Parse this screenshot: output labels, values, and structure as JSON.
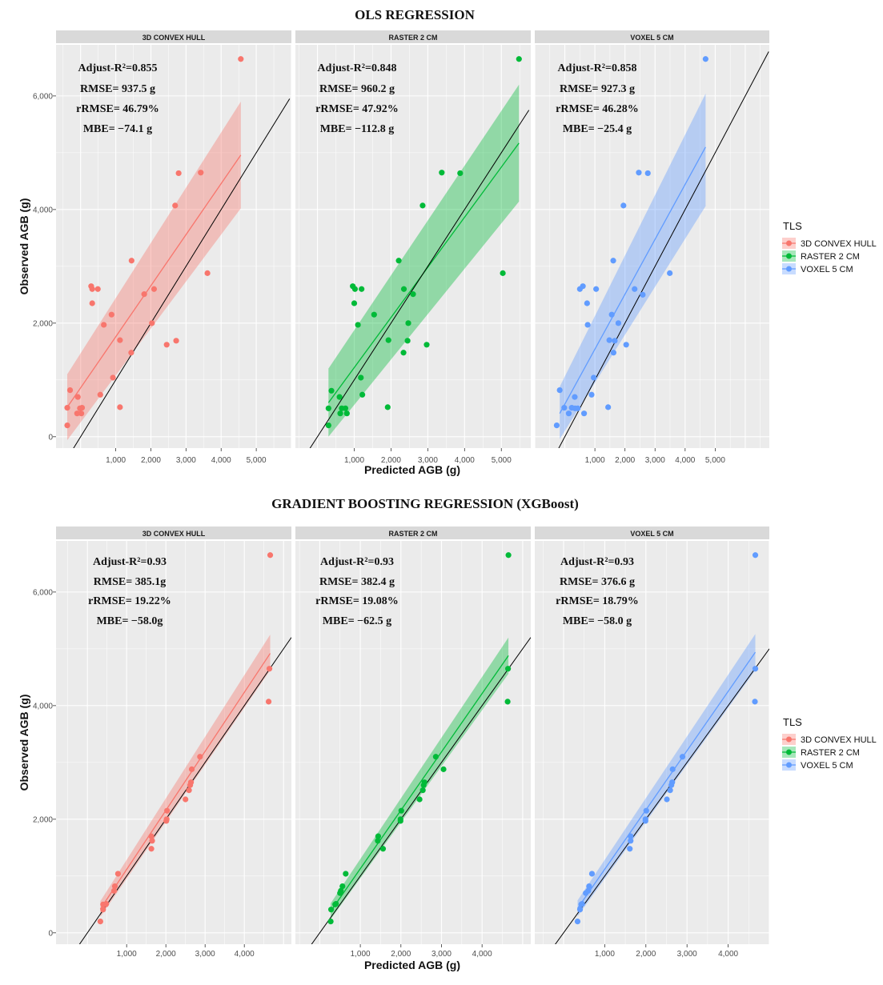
{
  "figure": {
    "legend_title": "TLS",
    "legend_labels": [
      "3D CONVEX HULL",
      "RASTER 2 CM",
      "VOXEL 5 CM"
    ],
    "colors": {
      "convex": "#F8766D",
      "raster": "#00BA38",
      "voxel": "#619CFF",
      "panel_bg": "#EBEBEB",
      "strip_bg": "#D9D9D9"
    }
  },
  "chart_data": [
    {
      "type": "scatter",
      "title": "OLS REGRESSION",
      "xlabel": "Predicted AGB (g)",
      "ylabel": "Observed AGB (g)",
      "ylim": [
        -200,
        6900
      ],
      "yticks": [
        0,
        2000,
        4000,
        6000
      ],
      "ytick_labels": [
        "0",
        "2,000",
        "4,000",
        "6,000"
      ],
      "panels": [
        {
          "strip": "3D CONVEX HULL",
          "color_key": "convex",
          "xlim": [
            -700,
            6000
          ],
          "xticks": [
            1000,
            2000,
            3000,
            4000,
            5000
          ],
          "xtick_labels": [
            "1,000",
            "2,000",
            "3,000",
            "4,000",
            "5,000"
          ],
          "stats": [
            "Adjust-R²=0.855",
            "RMSE= 937.5 g",
            "rRMSE= 46.79%",
            "MBE= −74.1 g"
          ],
          "points": [
            [
              -380,
              200
            ],
            [
              -380,
              510
            ],
            [
              -300,
              820
            ],
            [
              -80,
              700
            ],
            [
              -100,
              410
            ],
            [
              -20,
              500
            ],
            [
              20,
              410
            ],
            [
              40,
              510
            ],
            [
              300,
              2650
            ],
            [
              330,
              2600
            ],
            [
              330,
              2350
            ],
            [
              490,
              2600
            ],
            [
              560,
              740
            ],
            [
              660,
              1970
            ],
            [
              880,
              2150
            ],
            [
              920,
              1040
            ],
            [
              1120,
              520
            ],
            [
              1120,
              1700
            ],
            [
              1440,
              1480
            ],
            [
              1450,
              3100
            ],
            [
              1810,
              2510
            ],
            [
              2030,
              2000
            ],
            [
              2090,
              2600
            ],
            [
              2450,
              1620
            ],
            [
              2690,
              4070
            ],
            [
              2720,
              1690
            ],
            [
              2790,
              4640
            ],
            [
              3420,
              4650
            ],
            [
              3610,
              2880
            ],
            [
              4560,
              6650
            ]
          ],
          "fit": {
            "x": [
              -380,
              4560
            ],
            "y": [
              520,
              4960
            ]
          },
          "band": {
            "upper": [
              1100,
              5900
            ],
            "lower": [
              -60,
              4020
            ]
          },
          "identity": {
            "x": [
              -650,
              5950
            ]
          }
        },
        {
          "strip": "RASTER 2 CM",
          "color_key": "raster",
          "xlim": [
            -600,
            5800
          ],
          "xticks": [
            1000,
            2000,
            3000,
            4000,
            5000
          ],
          "xtick_labels": [
            "1,000",
            "2,000",
            "3,000",
            "4,000",
            "5,000"
          ],
          "stats": [
            "Adjust-R²=0.848",
            "RMSE= 960.2 g",
            "rRMSE= 47.92%",
            "MBE= −112.8 g"
          ],
          "points": [
            [
              300,
              200
            ],
            [
              300,
              500
            ],
            [
              380,
              810
            ],
            [
              600,
              700
            ],
            [
              620,
              410
            ],
            [
              660,
              500
            ],
            [
              760,
              500
            ],
            [
              800,
              410
            ],
            [
              960,
              2650
            ],
            [
              1020,
              2600
            ],
            [
              1000,
              2350
            ],
            [
              1100,
              1970
            ],
            [
              1180,
              1040
            ],
            [
              1200,
              2600
            ],
            [
              1220,
              740
            ],
            [
              1540,
              2150
            ],
            [
              1910,
              520
            ],
            [
              1930,
              1700
            ],
            [
              2210,
              3100
            ],
            [
              2340,
              1480
            ],
            [
              2350,
              2600
            ],
            [
              2450,
              1690
            ],
            [
              2470,
              2000
            ],
            [
              2600,
              2510
            ],
            [
              2860,
              4070
            ],
            [
              2970,
              1620
            ],
            [
              3380,
              4650
            ],
            [
              3880,
              4640
            ],
            [
              5040,
              2880
            ],
            [
              5480,
              6650
            ]
          ],
          "fit": {
            "x": [
              300,
              5480
            ],
            "y": [
              600,
              5170
            ]
          },
          "band": {
            "upper": [
              1200,
              6200
            ],
            "lower": [
              0,
              4140
            ]
          },
          "identity": {
            "x": [
              -580,
              5750
            ]
          }
        },
        {
          "strip": "VOXEL 5 CM",
          "color_key": "voxel",
          "xlim": [
            -1000,
            6800
          ],
          "xticks": [
            1000,
            2000,
            3000,
            4000,
            5000
          ],
          "xtick_labels": [
            "1,000",
            "2,000",
            "3,000",
            "4,000",
            "5,000"
          ],
          "stats": [
            "Adjust-R²=0.858",
            "RMSE= 927.3 g",
            "rRMSE= 46.28%",
            "MBE= −25.4 g"
          ],
          "points": [
            [
              -270,
              200
            ],
            [
              -170,
              820
            ],
            [
              -20,
              510
            ],
            [
              130,
              410
            ],
            [
              230,
              510
            ],
            [
              330,
              700
            ],
            [
              340,
              500
            ],
            [
              430,
              500
            ],
            [
              500,
              2600
            ],
            [
              600,
              2650
            ],
            [
              640,
              410
            ],
            [
              740,
              2350
            ],
            [
              760,
              1970
            ],
            [
              890,
              740
            ],
            [
              960,
              1040
            ],
            [
              1040,
              2600
            ],
            [
              1440,
              520
            ],
            [
              1480,
              1700
            ],
            [
              1560,
              2150
            ],
            [
              1610,
              3100
            ],
            [
              1620,
              1480
            ],
            [
              1660,
              1690
            ],
            [
              1780,
              2000
            ],
            [
              1950,
              4070
            ],
            [
              2040,
              1620
            ],
            [
              2320,
              2600
            ],
            [
              2460,
              4650
            ],
            [
              2590,
              2500
            ],
            [
              2760,
              4640
            ],
            [
              3490,
              2880
            ],
            [
              4680,
              6650
            ]
          ],
          "fit": {
            "x": [
              -170,
              4680
            ],
            "y": [
              410,
              5100
            ]
          },
          "band": {
            "upper": [
              880,
              6040
            ],
            "lower": [
              -40,
              4060
            ]
          },
          "identity": {
            "x": [
              -980,
              6780
            ]
          }
        }
      ]
    },
    {
      "type": "scatter",
      "title": "GRADIENT BOOSTING REGRESSION (XGBoost)",
      "xlabel": "Predicted AGB (g)",
      "ylabel": "Observed AGB (g)",
      "ylim": [
        -200,
        6900
      ],
      "yticks": [
        0,
        2000,
        4000,
        6000
      ],
      "ytick_labels": [
        "0",
        "2,000",
        "4,000",
        "6,000"
      ],
      "panels": [
        {
          "strip": "3D CONVEX HULL",
          "color_key": "convex",
          "xlim": [
            -800,
            5200
          ],
          "xticks": [
            1000,
            2000,
            3000,
            4000
          ],
          "xtick_labels": [
            "1,000",
            "2,000",
            "3,000",
            "4,000"
          ],
          "stats": [
            "Adjust-R²=0.93",
            "RMSE= 385.1g",
            "rRMSE= 19.22%",
            "MBE= −58.0g"
          ],
          "points": [
            [
              330,
              200
            ],
            [
              400,
              410
            ],
            [
              400,
              500
            ],
            [
              470,
              500
            ],
            [
              480,
              510
            ],
            [
              680,
              740
            ],
            [
              700,
              820
            ],
            [
              780,
              1040
            ],
            [
              1630,
              1480
            ],
            [
              1630,
              1700
            ],
            [
              1650,
              1620
            ],
            [
              2010,
              1970
            ],
            [
              2020,
              2000
            ],
            [
              2030,
              2150
            ],
            [
              2500,
              2350
            ],
            [
              2590,
              2510
            ],
            [
              2620,
              2600
            ],
            [
              2640,
              2650
            ],
            [
              2660,
              2880
            ],
            [
              2870,
              3100
            ],
            [
              4620,
              4070
            ],
            [
              4640,
              4650
            ],
            [
              4660,
              6650
            ]
          ],
          "fit": {
            "x": [
              330,
              4660
            ],
            "y": [
              420,
              4920
            ]
          },
          "band": {
            "upper": [
              560,
              5250
            ],
            "lower": [
              280,
              4620
            ]
          },
          "identity": {
            "x": [
              -800,
              5200
            ]
          }
        },
        {
          "strip": "RASTER 2 CM",
          "color_key": "raster",
          "xlim": [
            -600,
            5200
          ],
          "xticks": [
            1000,
            2000,
            3000,
            4000
          ],
          "xtick_labels": [
            "1,000",
            "2,000",
            "3,000",
            "4,000"
          ],
          "stats": [
            "Adjust-R²=0.93",
            "RMSE= 382.4 g",
            "rRMSE= 19.08%",
            "MBE= −62.5 g"
          ],
          "points": [
            [
              270,
              200
            ],
            [
              280,
              410
            ],
            [
              380,
              500
            ],
            [
              400,
              510
            ],
            [
              500,
              700
            ],
            [
              520,
              740
            ],
            [
              560,
              820
            ],
            [
              640,
              1040
            ],
            [
              1430,
              1620
            ],
            [
              1440,
              1700
            ],
            [
              1560,
              1480
            ],
            [
              1990,
              1970
            ],
            [
              1990,
              2000
            ],
            [
              2010,
              2150
            ],
            [
              2460,
              2350
            ],
            [
              2540,
              2510
            ],
            [
              2560,
              2600
            ],
            [
              2580,
              2650
            ],
            [
              2860,
              3100
            ],
            [
              3050,
              2880
            ],
            [
              4630,
              4070
            ],
            [
              4640,
              4650
            ],
            [
              4650,
              6650
            ]
          ],
          "fit": {
            "x": [
              270,
              4650
            ],
            "y": [
              380,
              4880
            ]
          },
          "band": {
            "upper": [
              520,
              5200
            ],
            "lower": [
              240,
              4560
            ]
          },
          "identity": {
            "x": [
              -600,
              5200
            ]
          }
        },
        {
          "strip": "VOXEL 5 CM",
          "color_key": "voxel",
          "xlim": [
            -700,
            5000
          ],
          "xticks": [
            1000,
            2000,
            3000,
            4000
          ],
          "xtick_labels": [
            "1,000",
            "2,000",
            "3,000",
            "4,000"
          ],
          "stats": [
            "Adjust-R²=0.93",
            "RMSE= 376.6 g",
            "rRMSE= 18.79%",
            "MBE= −58.0 g"
          ],
          "points": [
            [
              340,
              200
            ],
            [
              400,
              410
            ],
            [
              430,
              500
            ],
            [
              450,
              510
            ],
            [
              540,
              700
            ],
            [
              600,
              740
            ],
            [
              620,
              820
            ],
            [
              690,
              1040
            ],
            [
              1610,
              1480
            ],
            [
              1630,
              1620
            ],
            [
              1630,
              1700
            ],
            [
              1990,
              1970
            ],
            [
              1990,
              2000
            ],
            [
              2010,
              2150
            ],
            [
              2510,
              2350
            ],
            [
              2590,
              2510
            ],
            [
              2620,
              2600
            ],
            [
              2640,
              2650
            ],
            [
              2650,
              2880
            ],
            [
              2890,
              3100
            ],
            [
              4650,
              4070
            ],
            [
              4660,
              4650
            ],
            [
              4660,
              6650
            ]
          ],
          "fit": {
            "x": [
              340,
              4660
            ],
            "y": [
              430,
              4940
            ]
          },
          "band": {
            "upper": [
              570,
              5260
            ],
            "lower": [
              290,
              4620
            ]
          },
          "identity": {
            "x": [
              -700,
              5000
            ]
          }
        }
      ]
    }
  ]
}
